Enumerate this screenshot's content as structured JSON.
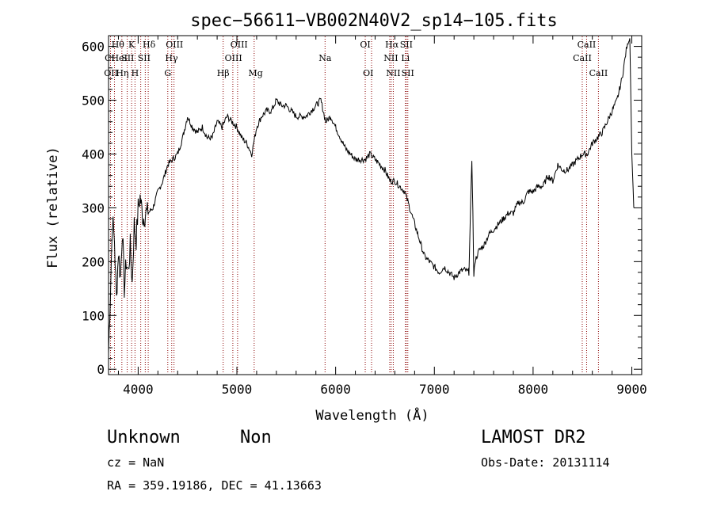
{
  "chart_data": {
    "type": "line",
    "title": "spec−56611−VB002N40V2_sp14−105.fits",
    "xlabel": "Wavelength (Å)",
    "ylabel": "Flux (relative)",
    "xlim": [
      3700,
      9100
    ],
    "ylim": [
      -10,
      620
    ],
    "xticks": [
      4000,
      5000,
      6000,
      7000,
      8000,
      9000
    ],
    "yticks": [
      0,
      100,
      200,
      300,
      400,
      500,
      600
    ],
    "grid": false,
    "line_color": "#000000",
    "line_marker_color": "#8b0000",
    "series": [
      {
        "x": [
          3700,
          3720,
          3740,
          3760,
          3780,
          3800,
          3820,
          3840,
          3860,
          3880,
          3900,
          3920,
          3940,
          3960,
          3980,
          4000,
          4020,
          4050,
          4080,
          4100,
          4150,
          4200,
          4250,
          4300,
          4350,
          4400,
          4450,
          4500,
          4550,
          4600,
          4650,
          4700,
          4750,
          4800,
          4850,
          4900,
          4950,
          5000,
          5050,
          5100,
          5150,
          5200,
          5250,
          5300,
          5350,
          5400,
          5450,
          5500,
          5550,
          5600,
          5650,
          5700,
          5750,
          5800,
          5850,
          5900,
          5950,
          6000,
          6050,
          6100,
          6150,
          6200,
          6250,
          6300,
          6350,
          6400,
          6450,
          6500,
          6550,
          6600,
          6650,
          6700,
          6750,
          6800,
          6850,
          6900,
          6950,
          7000,
          7050,
          7100,
          7150,
          7200,
          7250,
          7300,
          7350,
          7380,
          7390,
          7400,
          7410,
          7430,
          7450,
          7500,
          7550,
          7600,
          7650,
          7700,
          7750,
          7800,
          7850,
          7900,
          7950,
          8000,
          8050,
          8100,
          8150,
          8200,
          8250,
          8300,
          8350,
          8400,
          8450,
          8500,
          8550,
          8600,
          8650,
          8700,
          8750,
          8800,
          8850,
          8900,
          8950,
          8980,
          9000,
          9020
        ],
        "values": [
          30,
          150,
          280,
          240,
          130,
          220,
          170,
          260,
          150,
          200,
          180,
          230,
          160,
          270,
          240,
          300,
          320,
          280,
          290,
          290,
          300,
          330,
          350,
          380,
          390,
          400,
          430,
          470,
          450,
          440,
          450,
          430,
          430,
          460,
          450,
          470,
          460,
          450,
          430,
          420,
          400,
          450,
          470,
          480,
          480,
          500,
          490,
          490,
          480,
          470,
          470,
          470,
          480,
          490,
          500,
          460,
          470,
          450,
          430,
          410,
          400,
          390,
          390,
          390,
          400,
          390,
          380,
          370,
          350,
          350,
          340,
          330,
          300,
          270,
          240,
          210,
          200,
          190,
          180,
          190,
          180,
          170,
          180,
          185,
          180,
          390,
          290,
          170,
          200,
          210,
          220,
          230,
          250,
          260,
          270,
          280,
          290,
          290,
          310,
          310,
          330,
          330,
          340,
          340,
          360,
          350,
          380,
          370,
          370,
          380,
          390,
          400,
          400,
          420,
          430,
          440,
          460,
          480,
          500,
          540,
          600,
          615,
          400,
          300
        ]
      }
    ],
    "line_markers": [
      {
        "x": 3720,
        "rows": [
          2,
          3
        ]
      },
      {
        "x": 3760,
        "rows": [
          1,
          3
        ]
      },
      {
        "x": 3835,
        "rows": [
          1,
          2
        ]
      },
      {
        "x": 3889,
        "rows": [
          2,
          3
        ]
      },
      {
        "x": 3934,
        "rows": [
          1
        ]
      },
      {
        "x": 3968,
        "rows": [
          3
        ]
      },
      {
        "x": 4026,
        "rows": [
          2
        ]
      },
      {
        "x": 4072,
        "rows": [
          2
        ]
      },
      {
        "x": 4102,
        "rows": [
          1
        ]
      },
      {
        "x": 4300,
        "rows": [
          3
        ]
      },
      {
        "x": 4340,
        "rows": [
          2
        ]
      },
      {
        "x": 4363,
        "rows": [
          1
        ]
      },
      {
        "x": 4861,
        "rows": [
          3
        ]
      },
      {
        "x": 4959,
        "rows": [
          2
        ]
      },
      {
        "x": 5007,
        "rows": [
          1
        ]
      },
      {
        "x": 5175,
        "rows": [
          3
        ]
      },
      {
        "x": 5893,
        "rows": [
          2
        ]
      },
      {
        "x": 6300,
        "rows": [
          1
        ]
      },
      {
        "x": 6364,
        "rows": [
          3
        ]
      },
      {
        "x": 6548,
        "rows": [
          2,
          3
        ]
      },
      {
        "x": 6563,
        "rows": [
          1
        ]
      },
      {
        "x": 6584,
        "rows": [
          2
        ]
      },
      {
        "x": 6707,
        "rows": [
          2
        ]
      },
      {
        "x": 6716,
        "rows": [
          1,
          3
        ]
      },
      {
        "x": 6731,
        "rows": [
          1,
          3
        ]
      },
      {
        "x": 8498,
        "rows": [
          2
        ]
      },
      {
        "x": 8542,
        "rows": [
          1
        ]
      },
      {
        "x": 8662,
        "rows": [
          3
        ]
      }
    ],
    "line_labels": [
      {
        "text": "CI",
        "x": 3712,
        "row": 2
      },
      {
        "text": "OII",
        "x": 3725,
        "row": 3
      },
      {
        "text": "Hθ",
        "x": 3795,
        "row": 1
      },
      {
        "text": "HeI",
        "x": 3810,
        "row": 2
      },
      {
        "text": "Hη",
        "x": 3840,
        "row": 3
      },
      {
        "text": "K",
        "x": 3934,
        "row": 1
      },
      {
        "text": "SII",
        "x": 3895,
        "row": 2
      },
      {
        "text": "H",
        "x": 3968,
        "row": 3
      },
      {
        "text": "SII",
        "x": 4060,
        "row": 2
      },
      {
        "text": "Hδ",
        "x": 4110,
        "row": 1
      },
      {
        "text": "OIII",
        "x": 4368,
        "row": 1
      },
      {
        "text": "Hγ",
        "x": 4338,
        "row": 2
      },
      {
        "text": "G",
        "x": 4300,
        "row": 3
      },
      {
        "text": "OIII",
        "x": 5022,
        "row": 1
      },
      {
        "text": "OIII",
        "x": 4965,
        "row": 2
      },
      {
        "text": "Hβ",
        "x": 4861,
        "row": 3
      },
      {
        "text": "Mg",
        "x": 5190,
        "row": 3
      },
      {
        "text": "Na",
        "x": 5893,
        "row": 2
      },
      {
        "text": "OI",
        "x": 6300,
        "row": 1
      },
      {
        "text": "OI",
        "x": 6330,
        "row": 3
      },
      {
        "text": "Hα",
        "x": 6570,
        "row": 1
      },
      {
        "text": "SII",
        "x": 6716,
        "row": 1
      },
      {
        "text": "NII",
        "x": 6560,
        "row": 2
      },
      {
        "text": "Li",
        "x": 6707,
        "row": 2
      },
      {
        "text": "NII",
        "x": 6584,
        "row": 3
      },
      {
        "text": "SII",
        "x": 6731,
        "row": 3
      },
      {
        "text": "CaII",
        "x": 8542,
        "row": 1
      },
      {
        "text": "CaII",
        "x": 8498,
        "row": 2
      },
      {
        "text": "CaII",
        "x": 8662,
        "row": 3
      }
    ]
  },
  "info": {
    "object_class": "Unknown",
    "subclass": "Non",
    "survey": "LAMOST DR2",
    "cz": "cz = NaN",
    "obs_date": "Obs-Date: 20131114",
    "coords": "RA = 359.19186, DEC =  41.13663"
  }
}
